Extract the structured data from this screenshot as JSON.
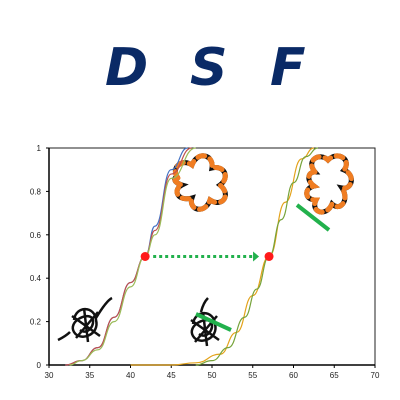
{
  "title_letters": [
    "D",
    "S",
    "F"
  ],
  "chart_data": {
    "type": "line",
    "xlim": [
      30,
      70
    ],
    "ylim": [
      0,
      1
    ],
    "xticks": [
      30,
      35,
      40,
      45,
      50,
      55,
      60,
      65,
      70
    ],
    "yticks": [
      0,
      0.2,
      0.4,
      0.6,
      0.8,
      1
    ],
    "grid": false,
    "series": [
      {
        "color": "#4472c4",
        "midpoint": 41.8,
        "x": [
          32,
          34,
          36,
          38,
          40,
          41.8,
          43,
          45,
          47
        ],
        "y": [
          0.0,
          0.02,
          0.08,
          0.22,
          0.38,
          0.5,
          0.64,
          0.9,
          1.0
        ]
      },
      {
        "color": "#c0504d",
        "midpoint": 41.8,
        "x": [
          32,
          34,
          36,
          38,
          40,
          41.8,
          43,
          45,
          47.5
        ],
        "y": [
          0.0,
          0.02,
          0.08,
          0.22,
          0.38,
          0.5,
          0.62,
          0.88,
          1.0
        ]
      },
      {
        "color": "#9bbb59",
        "midpoint": 41.8,
        "x": [
          32.5,
          34,
          36,
          38,
          40,
          41.8,
          43,
          45,
          48
        ],
        "y": [
          0.0,
          0.02,
          0.07,
          0.2,
          0.36,
          0.5,
          0.6,
          0.86,
          1.0
        ]
      },
      {
        "color": "#e3a21a",
        "midpoint": 57,
        "x": [
          40,
          45,
          48,
          51,
          53,
          55,
          57,
          59,
          61,
          62.5
        ],
        "y": [
          0.0,
          0.0,
          0.01,
          0.05,
          0.15,
          0.32,
          0.5,
          0.75,
          0.95,
          1.0
        ]
      },
      {
        "color": "#76a33a",
        "midpoint": 57,
        "x": [
          48,
          50,
          52,
          54,
          55.5,
          57,
          58.5,
          60,
          61.5,
          63
        ],
        "y": [
          0.0,
          0.02,
          0.08,
          0.22,
          0.35,
          0.5,
          0.67,
          0.84,
          0.96,
          1.0
        ]
      }
    ],
    "midpoint_markers": [
      {
        "x": 41.8,
        "y": 0.5,
        "color": "#ff1a1a"
      },
      {
        "x": 57,
        "y": 0.5,
        "color": "#ff1a1a"
      }
    ],
    "shift_arrow": {
      "from_x": 41.8,
      "to_x": 57,
      "y": 0.5,
      "color": "#22b14c",
      "style": "dotted"
    },
    "illustrations": [
      "unfolded-protein-orange-black",
      "unfolded-protein-orange-black-with-ligand",
      "folded-protein-black",
      "folded-protein-with-ligand"
    ],
    "ligand_color": "#22b14c"
  }
}
